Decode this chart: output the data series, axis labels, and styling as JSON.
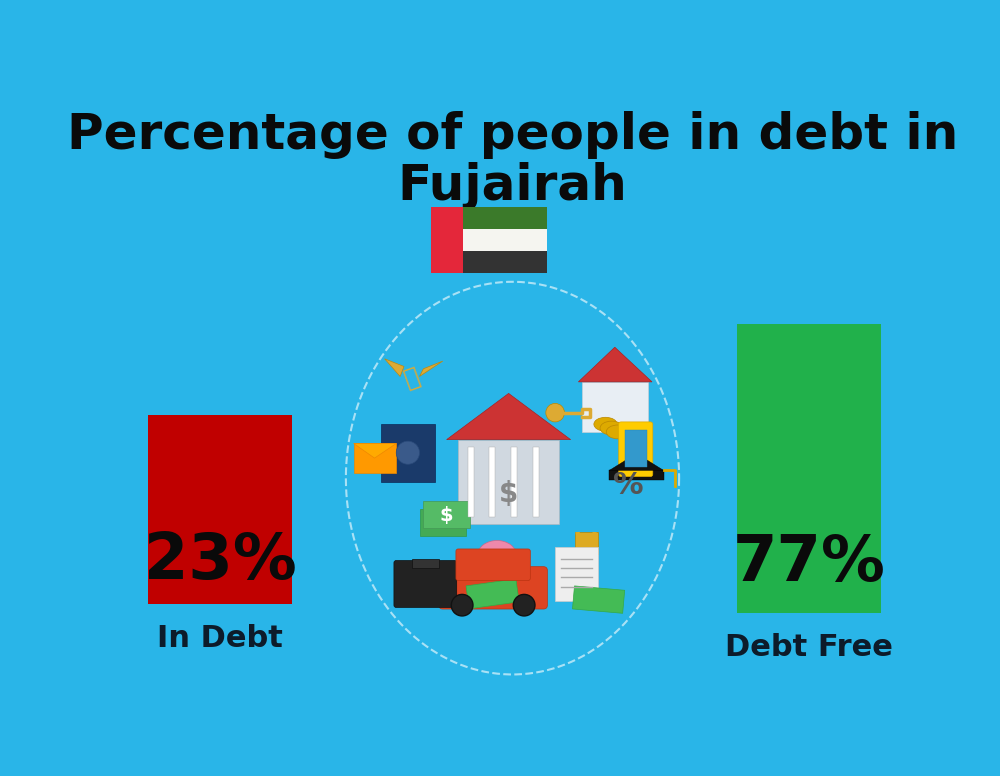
{
  "title_line1": "Percentage of people in debt in",
  "title_line2": "Fujairah",
  "background_color": "#29B5E8",
  "bar_left_value": "23%",
  "bar_left_label": "In Debt",
  "bar_left_color": "#C00000",
  "bar_right_value": "77%",
  "bar_right_label": "Debt Free",
  "bar_right_color": "#21B14B",
  "title_fontsize": 36,
  "subtitle_fontsize": 36,
  "bar_pct_fontsize": 46,
  "label_fontsize": 22,
  "title_color": "#0A0A0A",
  "bar_text_color": "#0A0A0A",
  "label_color": "#0D1B2A",
  "flag_red": "#E4273A",
  "flag_green": "#3B7A2A",
  "flag_white": "#F5F5F0",
  "flag_black": "#333333"
}
